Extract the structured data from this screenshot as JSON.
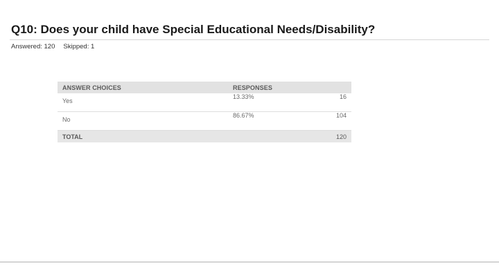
{
  "question": {
    "title": "Q10: Does your child have Special Educational Needs/Disability?",
    "answered_label": "Answered: 120",
    "skipped_label": "Skipped: 1"
  },
  "table": {
    "headers": {
      "choices": "ANSWER CHOICES",
      "responses": "RESPONSES"
    },
    "rows": [
      {
        "choice": "Yes",
        "percent": "13.33%",
        "count": "16"
      },
      {
        "choice": "No",
        "percent": "86.67%",
        "count": "104"
      }
    ],
    "total": {
      "label": "TOTAL",
      "count": "120"
    }
  }
}
